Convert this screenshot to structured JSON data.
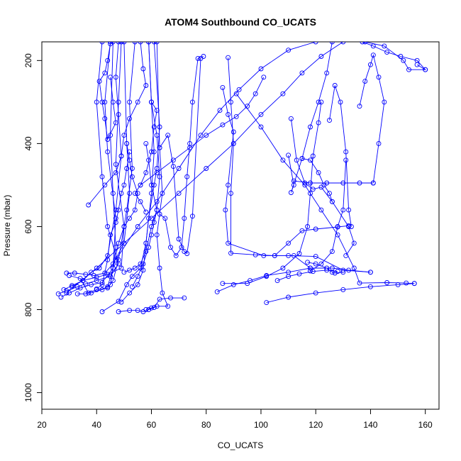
{
  "chart_data": {
    "type": "scatter",
    "title": "ATOM4 Southbound CO_UCATS",
    "xlabel": "CO_UCATS",
    "ylabel": "Pressure (mbar)",
    "xlim": [
      20,
      165
    ],
    "ylim": [
      1040,
      155
    ],
    "y_reversed": true,
    "x_ticks": [
      20,
      40,
      60,
      80,
      100,
      120,
      140,
      160
    ],
    "y_ticks": [
      200,
      400,
      600,
      800,
      1000
    ],
    "grid": false,
    "series_color": "#0000ff",
    "segments": [
      [
        [
          26,
          762
        ],
        [
          29,
          755
        ],
        [
          33,
          745
        ],
        [
          36,
          738
        ],
        [
          40,
          730
        ],
        [
          45,
          720
        ],
        [
          48,
          690
        ],
        [
          44,
          600
        ],
        [
          42,
          480
        ],
        [
          40,
          300
        ],
        [
          42,
          155
        ]
      ],
      [
        [
          27,
          770
        ],
        [
          30,
          760
        ],
        [
          34,
          748
        ],
        [
          38,
          740
        ],
        [
          42,
          735
        ],
        [
          46,
          700
        ],
        [
          47,
          580
        ],
        [
          44,
          420
        ],
        [
          43,
          300
        ],
        [
          45,
          155
        ]
      ],
      [
        [
          28,
          752
        ],
        [
          31,
          742
        ],
        [
          35,
          730
        ],
        [
          40,
          722
        ],
        [
          44,
          715
        ],
        [
          49,
          700
        ],
        [
          50,
          600
        ],
        [
          47,
          450
        ],
        [
          48,
          300
        ],
        [
          49,
          155
        ]
      ],
      [
        [
          29,
          712
        ],
        [
          32,
          712
        ],
        [
          36,
          715
        ],
        [
          39,
          718
        ],
        [
          43,
          712
        ],
        [
          46,
          690
        ],
        [
          50,
          640
        ],
        [
          52,
          520
        ],
        [
          51,
          400
        ],
        [
          50,
          155
        ]
      ],
      [
        [
          30,
          718
        ],
        [
          34,
          725
        ],
        [
          37,
          760
        ],
        [
          38,
          760
        ],
        [
          42,
          752
        ],
        [
          45,
          740
        ],
        [
          47,
          650
        ],
        [
          46,
          520
        ],
        [
          45,
          380
        ],
        [
          46,
          155
        ]
      ],
      [
        [
          33,
          762
        ],
        [
          36,
          762
        ],
        [
          40,
          752
        ],
        [
          44,
          748
        ],
        [
          46,
          730
        ],
        [
          48,
          680
        ],
        [
          51,
          560
        ],
        [
          53,
          460
        ],
        [
          52,
          300
        ],
        [
          54,
          155
        ]
      ],
      [
        [
          31,
          745
        ],
        [
          35,
          730
        ],
        [
          38,
          710
        ],
        [
          41,
          700
        ],
        [
          44,
          670
        ],
        [
          47,
          560
        ],
        [
          49,
          430
        ],
        [
          48,
          330
        ],
        [
          47,
          240
        ],
        [
          48,
          155
        ]
      ],
      [
        [
          37,
          548
        ],
        [
          43,
          500
        ],
        [
          47,
          470
        ],
        [
          49,
          430
        ],
        [
          50,
          380
        ],
        [
          52,
          340
        ],
        [
          55,
          300
        ],
        [
          58,
          260
        ],
        [
          57,
          220
        ],
        [
          56,
          155
        ]
      ],
      [
        [
          42,
          805
        ],
        [
          48,
          780
        ],
        [
          51,
          740
        ],
        [
          53,
          720
        ],
        [
          56,
          700
        ],
        [
          58,
          640
        ],
        [
          60,
          520
        ],
        [
          61,
          420
        ],
        [
          60,
          300
        ],
        [
          59,
          155
        ]
      ],
      [
        [
          48,
          805
        ],
        [
          52,
          802
        ],
        [
          55,
          802
        ],
        [
          57,
          805
        ],
        [
          59,
          800
        ],
        [
          61,
          795
        ],
        [
          63,
          775
        ],
        [
          67,
          772
        ],
        [
          72,
          772
        ]
      ],
      [
        [
          58,
          800
        ],
        [
          60,
          796
        ],
        [
          62,
          792
        ],
        [
          66,
          792
        ],
        [
          64,
          760
        ],
        [
          63,
          700
        ],
        [
          62,
          620
        ],
        [
          64,
          520
        ],
        [
          63,
          410
        ],
        [
          62,
          155
        ]
      ],
      [
        [
          49,
          782
        ],
        [
          52,
          760
        ],
        [
          55,
          740
        ],
        [
          57,
          705
        ],
        [
          58,
          640
        ],
        [
          59,
          580
        ],
        [
          61,
          500
        ],
        [
          62,
          460
        ],
        [
          63,
          360
        ],
        [
          61,
          155
        ]
      ],
      [
        [
          50,
          710
        ],
        [
          52,
          705
        ],
        [
          54,
          700
        ],
        [
          56,
          690
        ],
        [
          58,
          660
        ],
        [
          60,
          600
        ],
        [
          62,
          560
        ],
        [
          63,
          480
        ],
        [
          62,
          380
        ],
        [
          60,
          300
        ]
      ],
      [
        [
          53,
          745
        ],
        [
          55,
          720
        ],
        [
          57,
          690
        ],
        [
          59,
          650
        ],
        [
          60,
          620
        ],
        [
          61,
          590
        ],
        [
          62,
          560
        ],
        [
          60,
          500
        ],
        [
          59,
          440
        ],
        [
          58,
          400
        ]
      ],
      [
        [
          44,
          745
        ],
        [
          46,
          700
        ],
        [
          48,
          640
        ],
        [
          50,
          600
        ],
        [
          52,
          580
        ],
        [
          54,
          560
        ],
        [
          55,
          520
        ],
        [
          53,
          480
        ],
        [
          52,
          440
        ],
        [
          51,
          400
        ]
      ],
      [
        [
          40,
          750
        ],
        [
          42,
          740
        ],
        [
          44,
          680
        ],
        [
          45,
          620
        ],
        [
          47,
          590
        ],
        [
          48,
          560
        ],
        [
          49,
          520
        ],
        [
          50,
          500
        ],
        [
          51,
          460
        ],
        [
          52,
          420
        ]
      ],
      [
        [
          45,
          240
        ],
        [
          46,
          300
        ],
        [
          47,
          350
        ],
        [
          44,
          390
        ],
        [
          43,
          340
        ],
        [
          42,
          300
        ],
        [
          41,
          250
        ],
        [
          43,
          230
        ],
        [
          44,
          200
        ],
        [
          45,
          160
        ]
      ],
      [
        [
          58,
          565
        ],
        [
          56,
          540
        ],
        [
          54,
          520
        ],
        [
          56,
          500
        ],
        [
          58,
          470
        ],
        [
          60,
          420
        ],
        [
          61,
          360
        ],
        [
          62,
          320
        ],
        [
          60,
          300
        ],
        [
          59,
          155
        ]
      ],
      [
        [
          63,
          570
        ],
        [
          65,
          580
        ],
        [
          67,
          650
        ],
        [
          69,
          670
        ],
        [
          71,
          650
        ],
        [
          72,
          580
        ],
        [
          73,
          480
        ],
        [
          74,
          400
        ],
        [
          75,
          300
        ],
        [
          77,
          195
        ],
        [
          79,
          190
        ]
      ],
      [
        [
          63,
          410
        ],
        [
          66,
          380
        ],
        [
          68,
          455
        ],
        [
          70,
          630
        ],
        [
          72,
          660
        ],
        [
          73,
          665
        ],
        [
          75,
          575
        ],
        [
          78,
          195
        ]
      ],
      [
        [
          47,
          680
        ],
        [
          55,
          600
        ],
        [
          62,
          540
        ],
        [
          70,
          460
        ],
        [
          78,
          380
        ],
        [
          85,
          320
        ],
        [
          92,
          270
        ],
        [
          100,
          220
        ],
        [
          110,
          175
        ],
        [
          120,
          155
        ]
      ],
      [
        [
          29,
          760
        ],
        [
          40,
          700
        ],
        [
          50,
          640
        ],
        [
          60,
          580
        ],
        [
          70,
          520
        ],
        [
          80,
          460
        ],
        [
          90,
          400
        ],
        [
          100,
          330
        ],
        [
          108,
          280
        ],
        [
          115,
          230
        ],
        [
          122,
          190
        ],
        [
          130,
          155
        ]
      ],
      [
        [
          56,
          500
        ],
        [
          62,
          470
        ],
        [
          68,
          440
        ],
        [
          74,
          410
        ],
        [
          80,
          380
        ],
        [
          86,
          355
        ],
        [
          91,
          335
        ],
        [
          95,
          310
        ],
        [
          98,
          280
        ],
        [
          101,
          240
        ]
      ],
      [
        [
          86,
          265
        ],
        [
          88,
          330
        ],
        [
          90,
          372
        ],
        [
          88,
          500
        ],
        [
          87,
          560
        ],
        [
          88,
          640
        ],
        [
          101,
          670
        ],
        [
          110,
          670
        ],
        [
          120,
          672
        ],
        [
          130,
          705
        ],
        [
          140,
          710
        ]
      ],
      [
        [
          88,
          193
        ],
        [
          89,
          300
        ],
        [
          90,
          400
        ],
        [
          89,
          520
        ],
        [
          89,
          664
        ],
        [
          98,
          668
        ],
        [
          105,
          670
        ],
        [
          112,
          670
        ],
        [
          118,
          700
        ]
      ],
      [
        [
          91,
          280
        ],
        [
          100,
          360
        ],
        [
          108,
          440
        ],
        [
          116,
          500
        ],
        [
          122,
          560
        ],
        [
          128,
          620
        ],
        [
          134,
          700
        ],
        [
          136,
          736
        ],
        [
          146,
          735
        ],
        [
          153,
          736
        ],
        [
          156,
          737
        ]
      ],
      [
        [
          84,
          757
        ],
        [
          90,
          740
        ],
        [
          96,
          730
        ],
        [
          102,
          718
        ],
        [
          110,
          710
        ],
        [
          118,
          700
        ],
        [
          126,
          700
        ],
        [
          132,
          705
        ],
        [
          140,
          710
        ]
      ],
      [
        [
          102,
          783
        ],
        [
          110,
          770
        ],
        [
          120,
          760
        ],
        [
          130,
          752
        ],
        [
          140,
          745
        ],
        [
          150,
          740
        ],
        [
          156,
          737
        ]
      ],
      [
        [
          86,
          737
        ],
        [
          95,
          737
        ],
        [
          102,
          720
        ],
        [
          108,
          700
        ],
        [
          114,
          665
        ],
        [
          117,
          600
        ],
        [
          118,
          520
        ],
        [
          119,
          430
        ],
        [
          121,
          350
        ],
        [
          122,
          300
        ]
      ],
      [
        [
          110,
          428
        ],
        [
          112,
          500
        ],
        [
          111,
          518
        ],
        [
          115,
          436
        ],
        [
          118,
          360
        ],
        [
          121,
          300
        ],
        [
          124,
          230
        ],
        [
          126,
          155
        ]
      ],
      [
        [
          111,
          340
        ],
        [
          113,
          440
        ],
        [
          116,
          495
        ],
        [
          119,
          510
        ],
        [
          122,
          505
        ],
        [
          126,
          540
        ],
        [
          132,
          600
        ],
        [
          134,
          640
        ],
        [
          131,
          670
        ]
      ],
      [
        [
          112,
          490
        ],
        [
          118,
          495
        ],
        [
          124,
          495
        ],
        [
          130,
          495
        ],
        [
          136,
          495
        ],
        [
          141,
          495
        ]
      ],
      [
        [
          125,
          344
        ],
        [
          127,
          260
        ],
        [
          129,
          300
        ],
        [
          131,
          420
        ],
        [
          132,
          560
        ],
        [
          133,
          600
        ]
      ],
      [
        [
          105,
          670
        ],
        [
          110,
          640
        ],
        [
          115,
          610
        ],
        [
          120,
          606
        ],
        [
          128,
          601
        ],
        [
          132,
          598
        ]
      ],
      [
        [
          118,
          707
        ],
        [
          122,
          690
        ],
        [
          126,
          660
        ],
        [
          128,
          600
        ],
        [
          130,
          560
        ],
        [
          131,
          440
        ]
      ],
      [
        [
          115,
          436
        ],
        [
          118,
          440
        ],
        [
          121,
          470
        ],
        [
          123,
          500
        ],
        [
          125,
          520
        ],
        [
          126,
          540
        ]
      ],
      [
        [
          136,
          310
        ],
        [
          138,
          250
        ],
        [
          140,
          210
        ],
        [
          141,
          187
        ],
        [
          143,
          240
        ],
        [
          145,
          300
        ],
        [
          143,
          400
        ],
        [
          141,
          495
        ]
      ],
      [
        [
          138,
          155
        ],
        [
          145,
          165
        ],
        [
          152,
          200
        ],
        [
          154,
          222
        ],
        [
          160,
          222
        ],
        [
          157,
          210
        ]
      ],
      [
        [
          137,
          155
        ],
        [
          141,
          165
        ],
        [
          146,
          180
        ],
        [
          151,
          190
        ],
        [
          157,
          200
        ],
        [
          160,
          222
        ]
      ],
      [
        [
          117,
          686
        ],
        [
          120,
          690
        ],
        [
          124,
          700
        ],
        [
          126,
          710
        ],
        [
          127,
          712
        ],
        [
          130,
          710
        ]
      ],
      [
        [
          106,
          730
        ],
        [
          110,
          720
        ],
        [
          114,
          714
        ],
        [
          119,
          708
        ],
        [
          124,
          705
        ],
        [
          128,
          708
        ]
      ]
    ]
  }
}
